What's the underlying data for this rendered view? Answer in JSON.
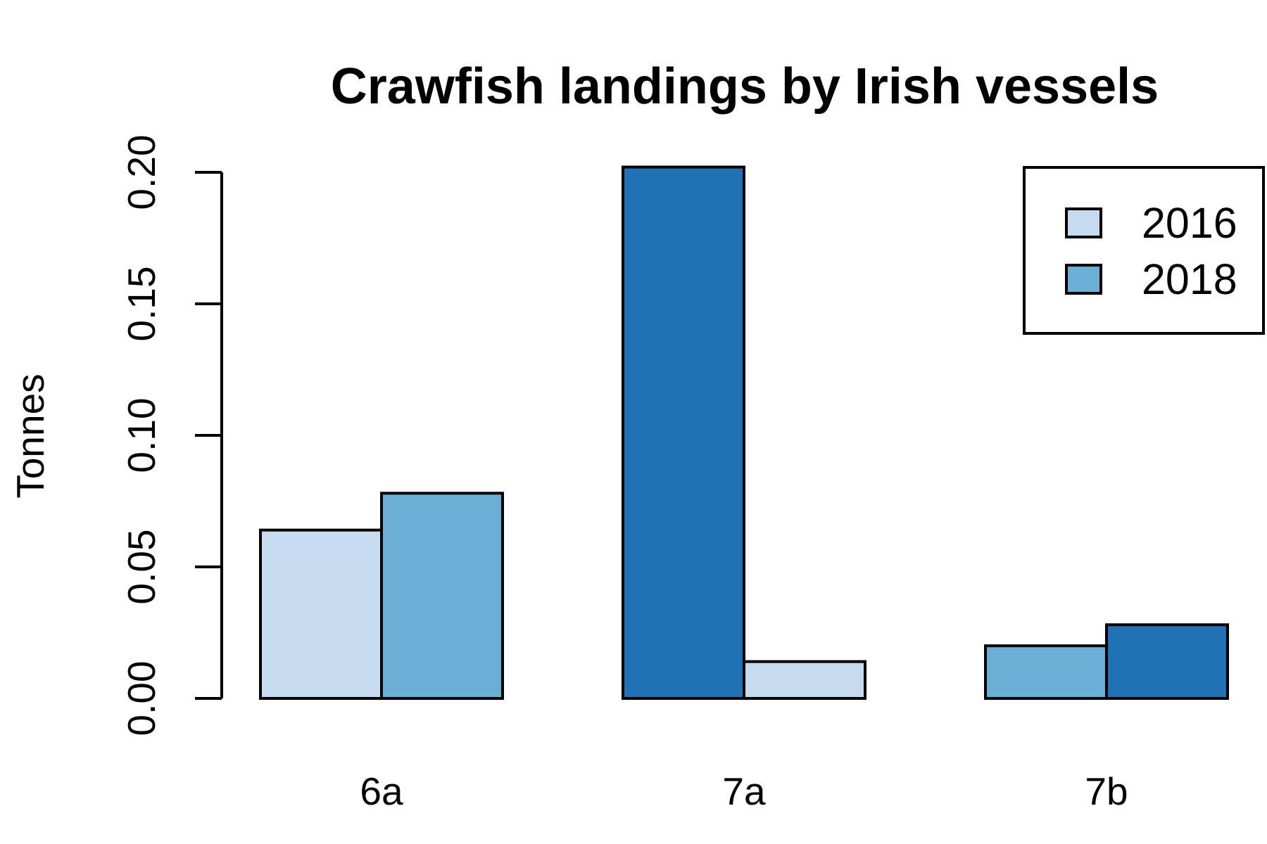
{
  "chart_data": {
    "type": "bar",
    "title": "Crawfish landings by Irish vessels",
    "ylabel": "Tonnes",
    "xlabel": "",
    "categories": [
      "6a",
      "7a",
      "7b"
    ],
    "bars": [
      [
        {
          "value": 0.064,
          "color": "#c6dbef"
        },
        {
          "value": 0.078,
          "color": "#6baed6"
        }
      ],
      [
        {
          "value": 0.202,
          "color": "#2171b5"
        },
        {
          "value": 0.014,
          "color": "#c6dbef"
        }
      ],
      [
        {
          "value": 0.02,
          "color": "#6baed6"
        },
        {
          "value": 0.028,
          "color": "#2171b5"
        }
      ]
    ],
    "ylim": [
      0,
      0.2
    ],
    "yticks": [
      "0.00",
      "0.05",
      "0.10",
      "0.15",
      "0.20"
    ],
    "legend": {
      "position": "top-right",
      "entries": [
        {
          "label": "2016",
          "color": "#c6dbef"
        },
        {
          "label": "2018",
          "color": "#6baed6"
        }
      ]
    }
  }
}
